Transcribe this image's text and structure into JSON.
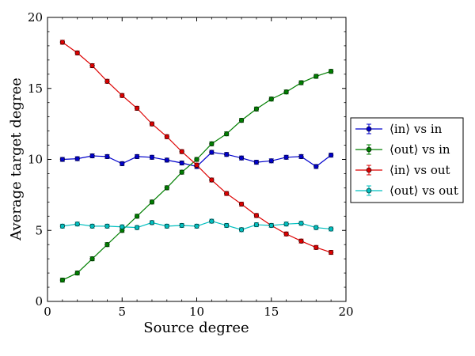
{
  "chart_data": {
    "type": "line",
    "title": "",
    "xlabel": "Source degree",
    "ylabel": "Average target degree",
    "xlim": [
      0,
      20
    ],
    "ylim": [
      0,
      20
    ],
    "xticks": [
      0,
      5,
      10,
      15,
      20
    ],
    "yticks": [
      0,
      5,
      10,
      15,
      20
    ],
    "x": [
      1,
      2,
      3,
      4,
      5,
      6,
      7,
      8,
      9,
      10,
      11,
      12,
      13,
      14,
      15,
      16,
      17,
      18,
      19
    ],
    "legend_position": "right",
    "series": [
      {
        "name": "⟨in⟩ vs in",
        "color": "#0000cc",
        "values": [
          10.0,
          10.05,
          10.25,
          10.2,
          9.7,
          10.2,
          10.15,
          9.95,
          9.75,
          9.5,
          10.5,
          10.35,
          10.1,
          9.8,
          9.9,
          10.15,
          10.2,
          9.5,
          10.3
        ]
      },
      {
        "name": "⟨out⟩ vs in",
        "color": "#007f00",
        "values": [
          1.5,
          2.0,
          3.0,
          4.0,
          5.0,
          6.0,
          7.0,
          8.0,
          9.1,
          10.0,
          11.1,
          11.8,
          12.75,
          13.55,
          14.25,
          14.75,
          15.4,
          15.85,
          16.2
        ]
      },
      {
        "name": "⟨in⟩ vs out",
        "color": "#dd0000",
        "values": [
          18.25,
          17.5,
          16.6,
          15.5,
          14.5,
          13.6,
          12.5,
          11.6,
          10.55,
          9.6,
          8.55,
          7.6,
          6.85,
          6.05,
          5.35,
          4.75,
          4.25,
          3.8,
          3.45
        ]
      },
      {
        "name": "⟨out⟩ vs out",
        "color": "#00bfbf",
        "values": [
          5.3,
          5.45,
          5.3,
          5.3,
          5.25,
          5.2,
          5.55,
          5.3,
          5.35,
          5.3,
          5.65,
          5.35,
          5.05,
          5.4,
          5.35,
          5.45,
          5.5,
          5.2,
          5.1
        ]
      }
    ]
  }
}
